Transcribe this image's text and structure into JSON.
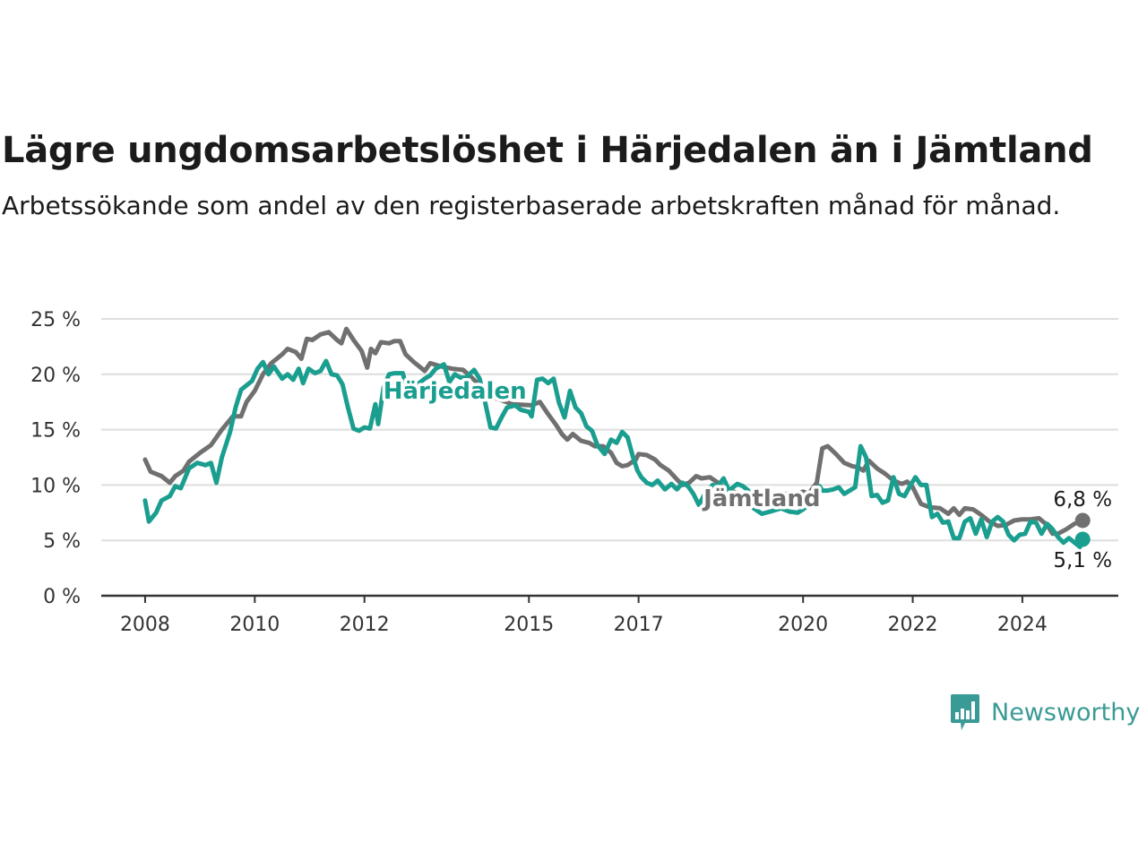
{
  "title": "Lägre ungdomsarbetslöshet i Härjedalen än i Jämtland",
  "subtitle": "Arbetssökande som andel av den registerbaserade arbetskraften månad för månad.",
  "brand": {
    "name": "Newsworthy",
    "icon": "newsworthy-bar-chart-icon",
    "color": "#3a9a95"
  },
  "chart_data": {
    "type": "line",
    "title": "Lägre ungdomsarbetslöshet i Härjedalen än i Jämtland",
    "subtitle": "Arbetssökande som andel av den registerbaserade arbetskraften månad för månad.",
    "xlabel": "",
    "ylabel": "",
    "x_range": [
      2007.2,
      2025.75
    ],
    "ylim": [
      0,
      25
    ],
    "grid": true,
    "legend": "inline labels",
    "x_ticks": [
      {
        "value": 2008,
        "label": "2008"
      },
      {
        "value": 2010,
        "label": "2010"
      },
      {
        "value": 2012,
        "label": "2012"
      },
      {
        "value": 2015,
        "label": "2015"
      },
      {
        "value": 2017,
        "label": "2017"
      },
      {
        "value": 2020,
        "label": "2020"
      },
      {
        "value": 2022,
        "label": "2022"
      },
      {
        "value": 2024,
        "label": "2024"
      }
    ],
    "y_ticks": [
      {
        "value": 0,
        "label": "0 %"
      },
      {
        "value": 5,
        "label": "5 %"
      },
      {
        "value": 10,
        "label": "10 %"
      },
      {
        "value": 15,
        "label": "15 %"
      },
      {
        "value": 20,
        "label": "20 %"
      },
      {
        "value": 25,
        "label": "25 %"
      }
    ],
    "series": [
      {
        "name": "Jämtland",
        "color": "#707070",
        "label_at": [
          2019.25,
          8.1
        ],
        "end_label": "6,8 %",
        "points": [
          [
            2008.0,
            12.3
          ],
          [
            2008.1,
            11.2
          ],
          [
            2008.3,
            10.8
          ],
          [
            2008.45,
            10.2
          ],
          [
            2008.55,
            10.8
          ],
          [
            2008.7,
            11.3
          ],
          [
            2008.8,
            12.1
          ],
          [
            2009.0,
            12.9
          ],
          [
            2009.2,
            13.6
          ],
          [
            2009.4,
            15.0
          ],
          [
            2009.6,
            16.2
          ],
          [
            2009.75,
            16.2
          ],
          [
            2009.85,
            17.5
          ],
          [
            2010.0,
            18.5
          ],
          [
            2010.15,
            20.0
          ],
          [
            2010.3,
            21.0
          ],
          [
            2010.5,
            21.8
          ],
          [
            2010.6,
            22.3
          ],
          [
            2010.75,
            22.0
          ],
          [
            2010.85,
            21.4
          ],
          [
            2010.95,
            23.2
          ],
          [
            2011.05,
            23.1
          ],
          [
            2011.2,
            23.6
          ],
          [
            2011.35,
            23.8
          ],
          [
            2011.5,
            23.1
          ],
          [
            2011.58,
            22.8
          ],
          [
            2011.67,
            24.1
          ],
          [
            2011.8,
            23.1
          ],
          [
            2011.95,
            22.1
          ],
          [
            2012.05,
            20.6
          ],
          [
            2012.12,
            22.3
          ],
          [
            2012.2,
            21.9
          ],
          [
            2012.3,
            22.9
          ],
          [
            2012.45,
            22.8
          ],
          [
            2012.55,
            23.0
          ],
          [
            2012.65,
            23.0
          ],
          [
            2012.75,
            21.8
          ],
          [
            2012.9,
            21.1
          ],
          [
            2013.0,
            20.7
          ],
          [
            2013.1,
            20.3
          ],
          [
            2013.2,
            21.0
          ],
          [
            2013.4,
            20.7
          ],
          [
            2013.6,
            20.5
          ],
          [
            2013.8,
            20.4
          ],
          [
            2014.0,
            19.5
          ],
          [
            2014.3,
            18.0
          ],
          [
            2014.7,
            17.3
          ],
          [
            2015.05,
            17.2
          ],
          [
            2015.2,
            17.5
          ],
          [
            2015.35,
            16.4
          ],
          [
            2015.5,
            15.4
          ],
          [
            2015.6,
            14.6
          ],
          [
            2015.7,
            14.1
          ],
          [
            2015.8,
            14.6
          ],
          [
            2015.95,
            14.0
          ],
          [
            2016.1,
            13.8
          ],
          [
            2016.2,
            13.5
          ],
          [
            2016.35,
            13.5
          ],
          [
            2016.5,
            12.9
          ],
          [
            2016.6,
            12.0
          ],
          [
            2016.7,
            11.7
          ],
          [
            2016.8,
            11.8
          ],
          [
            2016.95,
            12.3
          ],
          [
            2017.0,
            12.8
          ],
          [
            2017.15,
            12.7
          ],
          [
            2017.3,
            12.3
          ],
          [
            2017.4,
            11.8
          ],
          [
            2017.55,
            11.3
          ],
          [
            2017.7,
            10.5
          ],
          [
            2017.8,
            10.0
          ],
          [
            2017.92,
            10.2
          ],
          [
            2018.05,
            10.8
          ],
          [
            2018.15,
            10.6
          ],
          [
            2018.3,
            10.7
          ],
          [
            2018.45,
            10.2
          ],
          [
            2018.6,
            9.6
          ],
          [
            2018.8,
            9.3
          ],
          [
            2019.0,
            9.1
          ],
          [
            2019.3,
            8.9
          ],
          [
            2019.6,
            9.0
          ],
          [
            2019.75,
            9.3
          ],
          [
            2019.9,
            9.2
          ],
          [
            2020.0,
            9.4
          ],
          [
            2020.1,
            9.2
          ],
          [
            2020.25,
            10.2
          ],
          [
            2020.35,
            13.3
          ],
          [
            2020.45,
            13.5
          ],
          [
            2020.6,
            12.8
          ],
          [
            2020.75,
            12.0
          ],
          [
            2020.9,
            11.7
          ],
          [
            2021.0,
            11.6
          ],
          [
            2021.1,
            11.3
          ],
          [
            2021.2,
            12.2
          ],
          [
            2021.35,
            11.5
          ],
          [
            2021.5,
            11.0
          ],
          [
            2021.65,
            10.4
          ],
          [
            2021.8,
            10.1
          ],
          [
            2021.9,
            10.3
          ],
          [
            2022.0,
            9.8
          ],
          [
            2022.15,
            8.3
          ],
          [
            2022.3,
            8.0
          ],
          [
            2022.5,
            7.9
          ],
          [
            2022.65,
            7.4
          ],
          [
            2022.75,
            7.9
          ],
          [
            2022.85,
            7.3
          ],
          [
            2022.95,
            7.9
          ],
          [
            2023.1,
            7.8
          ],
          [
            2023.25,
            7.3
          ],
          [
            2023.4,
            6.7
          ],
          [
            2023.55,
            6.3
          ],
          [
            2023.7,
            6.4
          ],
          [
            2023.85,
            6.8
          ],
          [
            2024.0,
            6.9
          ],
          [
            2024.15,
            6.9
          ],
          [
            2024.3,
            7.0
          ],
          [
            2024.45,
            6.4
          ],
          [
            2024.55,
            5.6
          ],
          [
            2024.65,
            5.6
          ],
          [
            2024.8,
            6.0
          ],
          [
            2024.95,
            6.5
          ],
          [
            2025.1,
            6.8
          ]
        ]
      },
      {
        "name": "Härjedalen",
        "color": "#1a9e8f",
        "label_at": [
          2013.65,
          17.8
        ],
        "end_label": "5,1 %",
        "points": [
          [
            2008.0,
            8.6
          ],
          [
            2008.07,
            6.7
          ],
          [
            2008.2,
            7.5
          ],
          [
            2008.3,
            8.6
          ],
          [
            2008.45,
            9.0
          ],
          [
            2008.55,
            9.9
          ],
          [
            2008.65,
            9.7
          ],
          [
            2008.8,
            11.5
          ],
          [
            2008.95,
            12.0
          ],
          [
            2009.1,
            11.8
          ],
          [
            2009.2,
            12.0
          ],
          [
            2009.3,
            10.2
          ],
          [
            2009.4,
            12.5
          ],
          [
            2009.55,
            14.8
          ],
          [
            2009.65,
            17.0
          ],
          [
            2009.75,
            18.6
          ],
          [
            2009.85,
            19.0
          ],
          [
            2009.95,
            19.4
          ],
          [
            2010.05,
            20.5
          ],
          [
            2010.15,
            21.1
          ],
          [
            2010.25,
            20.0
          ],
          [
            2010.35,
            20.7
          ],
          [
            2010.5,
            19.6
          ],
          [
            2010.6,
            20.0
          ],
          [
            2010.7,
            19.5
          ],
          [
            2010.8,
            20.5
          ],
          [
            2010.88,
            19.2
          ],
          [
            2010.98,
            20.5
          ],
          [
            2011.1,
            20.1
          ],
          [
            2011.2,
            20.3
          ],
          [
            2011.3,
            21.2
          ],
          [
            2011.4,
            20.0
          ],
          [
            2011.5,
            19.9
          ],
          [
            2011.6,
            19.1
          ],
          [
            2011.7,
            17.0
          ],
          [
            2011.8,
            15.1
          ],
          [
            2011.9,
            14.9
          ],
          [
            2012.0,
            15.2
          ],
          [
            2012.1,
            15.1
          ],
          [
            2012.2,
            17.3
          ],
          [
            2012.25,
            15.5
          ],
          [
            2012.35,
            18.8
          ],
          [
            2012.45,
            20.0
          ],
          [
            2012.55,
            20.1
          ],
          [
            2012.7,
            20.1
          ],
          [
            2012.8,
            18.3
          ],
          [
            2012.9,
            19.2
          ],
          [
            2013.0,
            19.2
          ],
          [
            2013.1,
            19.6
          ],
          [
            2013.2,
            19.9
          ],
          [
            2013.3,
            20.5
          ],
          [
            2013.45,
            20.9
          ],
          [
            2013.55,
            19.3
          ],
          [
            2013.65,
            20.0
          ],
          [
            2013.75,
            19.7
          ],
          [
            2013.85,
            19.7
          ],
          [
            2014.0,
            20.4
          ],
          [
            2014.1,
            19.6
          ],
          [
            2014.2,
            17.5
          ],
          [
            2014.3,
            15.2
          ],
          [
            2014.4,
            15.1
          ],
          [
            2014.5,
            16.1
          ],
          [
            2014.6,
            17.0
          ],
          [
            2014.75,
            17.2
          ],
          [
            2014.85,
            16.8
          ],
          [
            2015.0,
            16.6
          ],
          [
            2015.05,
            16.2
          ],
          [
            2015.15,
            19.5
          ],
          [
            2015.25,
            19.6
          ],
          [
            2015.35,
            19.2
          ],
          [
            2015.45,
            19.6
          ],
          [
            2015.55,
            17.4
          ],
          [
            2015.65,
            16.1
          ],
          [
            2015.75,
            18.5
          ],
          [
            2015.85,
            17.0
          ],
          [
            2015.95,
            16.5
          ],
          [
            2016.05,
            15.3
          ],
          [
            2016.15,
            14.9
          ],
          [
            2016.25,
            13.6
          ],
          [
            2016.38,
            12.8
          ],
          [
            2016.5,
            14.1
          ],
          [
            2016.6,
            13.8
          ],
          [
            2016.7,
            14.8
          ],
          [
            2016.8,
            14.3
          ],
          [
            2016.9,
            12.5
          ],
          [
            2016.98,
            11.3
          ],
          [
            2017.05,
            10.7
          ],
          [
            2017.15,
            10.2
          ],
          [
            2017.25,
            10.0
          ],
          [
            2017.35,
            10.4
          ],
          [
            2017.48,
            9.6
          ],
          [
            2017.6,
            10.1
          ],
          [
            2017.7,
            9.6
          ],
          [
            2017.8,
            10.2
          ],
          [
            2017.9,
            9.9
          ],
          [
            2018.0,
            9.2
          ],
          [
            2018.1,
            8.2
          ],
          [
            2018.2,
            9.1
          ],
          [
            2018.35,
            10.0
          ],
          [
            2018.45,
            9.9
          ],
          [
            2018.55,
            10.6
          ],
          [
            2018.65,
            9.5
          ],
          [
            2018.8,
            10.1
          ],
          [
            2018.9,
            9.9
          ],
          [
            2019.0,
            9.5
          ],
          [
            2019.1,
            7.9
          ],
          [
            2019.25,
            7.4
          ],
          [
            2019.4,
            7.6
          ],
          [
            2019.6,
            7.9
          ],
          [
            2019.75,
            7.6
          ],
          [
            2019.9,
            7.5
          ],
          [
            2020.0,
            7.8
          ],
          [
            2020.1,
            8.2
          ],
          [
            2020.2,
            9.0
          ],
          [
            2020.3,
            9.9
          ],
          [
            2020.35,
            9.5
          ],
          [
            2020.45,
            9.5
          ],
          [
            2020.55,
            9.6
          ],
          [
            2020.65,
            9.8
          ],
          [
            2020.75,
            9.2
          ],
          [
            2020.85,
            9.5
          ],
          [
            2020.95,
            9.8
          ],
          [
            2021.05,
            13.5
          ],
          [
            2021.15,
            12.5
          ],
          [
            2021.25,
            9.0
          ],
          [
            2021.35,
            9.1
          ],
          [
            2021.45,
            8.4
          ],
          [
            2021.55,
            8.6
          ],
          [
            2021.65,
            10.7
          ],
          [
            2021.75,
            9.2
          ],
          [
            2021.85,
            9.0
          ],
          [
            2021.95,
            9.9
          ],
          [
            2022.05,
            10.7
          ],
          [
            2022.15,
            10.0
          ],
          [
            2022.25,
            10.0
          ],
          [
            2022.35,
            7.1
          ],
          [
            2022.45,
            7.4
          ],
          [
            2022.55,
            6.6
          ],
          [
            2022.65,
            6.7
          ],
          [
            2022.75,
            5.2
          ],
          [
            2022.85,
            5.2
          ],
          [
            2022.95,
            6.7
          ],
          [
            2023.05,
            7.0
          ],
          [
            2023.15,
            5.6
          ],
          [
            2023.25,
            6.9
          ],
          [
            2023.35,
            5.3
          ],
          [
            2023.45,
            6.7
          ],
          [
            2023.55,
            7.1
          ],
          [
            2023.65,
            6.7
          ],
          [
            2023.75,
            5.5
          ],
          [
            2023.85,
            5.0
          ],
          [
            2023.95,
            5.5
          ],
          [
            2024.05,
            5.6
          ],
          [
            2024.15,
            6.7
          ],
          [
            2024.25,
            6.6
          ],
          [
            2024.35,
            5.6
          ],
          [
            2024.45,
            6.5
          ],
          [
            2024.55,
            6.0
          ],
          [
            2024.65,
            5.3
          ],
          [
            2024.75,
            4.8
          ],
          [
            2024.85,
            5.2
          ],
          [
            2024.95,
            4.8
          ],
          [
            2025.05,
            4.4
          ],
          [
            2025.1,
            5.1
          ]
        ]
      }
    ]
  }
}
